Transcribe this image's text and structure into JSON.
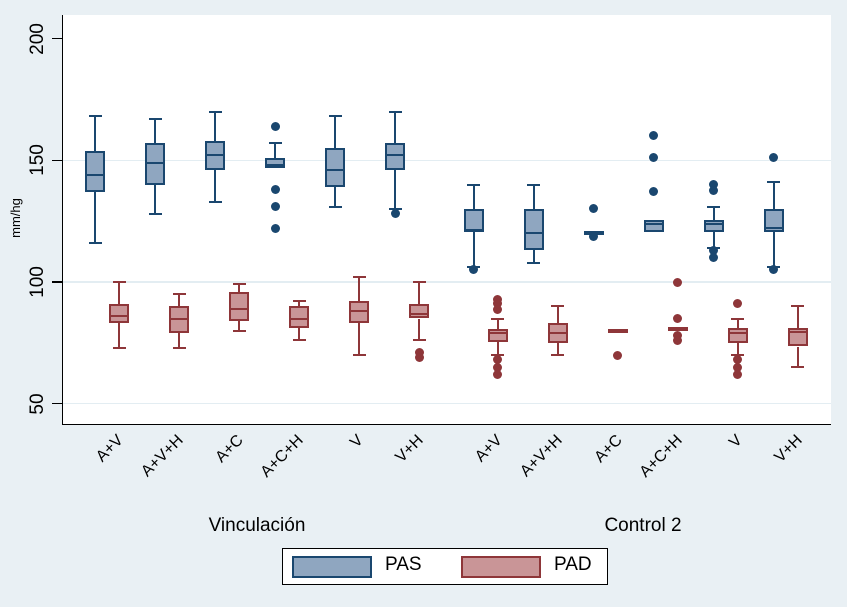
{
  "figure": {
    "background": "#e9f0f4",
    "plot_background": "#ffffff",
    "grid_color": "#e3edf2",
    "axis_color": "#000000"
  },
  "chart_data": {
    "type": "box",
    "title": "",
    "xlabel": "",
    "ylabel": "mm/hg",
    "ylim": [
      41,
      210
    ],
    "yticks": [
      50,
      100,
      150,
      200
    ],
    "gridlines": [
      50,
      100,
      150
    ],
    "legend_position": "bottom",
    "groups": [
      {
        "label": "Vinculación",
        "categories": [
          "A+V",
          "A+V+H",
          "A+C",
          "A+C+H",
          "V",
          "V+H"
        ]
      },
      {
        "label": "Control 2",
        "categories": [
          "A+V",
          "A+V+H",
          "A+C",
          "A+C+H",
          "V",
          "V+H"
        ]
      }
    ],
    "series": [
      {
        "name": "PAS",
        "fill": "#8fa6c0",
        "border": "#1a476f",
        "boxes": [
          {
            "category": "A+V",
            "low": 116,
            "q1": 137,
            "median": 144,
            "q3": 154,
            "high": 168,
            "outliers_low": [],
            "outliers_high": []
          },
          {
            "category": "A+V+H",
            "low": 128,
            "q1": 140,
            "median": 149,
            "q3": 157,
            "high": 167,
            "outliers_low": [],
            "outliers_high": []
          },
          {
            "category": "A+C",
            "low": 133,
            "q1": 146,
            "median": 152,
            "q3": 158,
            "high": 170,
            "outliers_low": [],
            "outliers_high": []
          },
          {
            "category": "A+C+H",
            "low": null,
            "q1": 147,
            "median": 148,
            "q3": 151,
            "high": 157,
            "outliers_low": [
              138,
              131,
              122
            ],
            "outliers_high": [
              164
            ]
          },
          {
            "category": "V",
            "low": 131,
            "q1": 139,
            "median": 146,
            "q3": 155,
            "high": 168,
            "outliers_low": [],
            "outliers_high": []
          },
          {
            "category": "V+H",
            "low": 130,
            "q1": 146,
            "median": 152,
            "q3": 157,
            "high": 170,
            "outliers_low": [
              128
            ],
            "outliers_high": []
          },
          {
            "category": "A+V",
            "low": 106,
            "q1": 120.5,
            "median": 121.5,
            "q3": 130,
            "high": 140,
            "outliers_low": [
              105
            ],
            "outliers_high": []
          },
          {
            "category": "A+V+H",
            "low": 108,
            "q1": 113,
            "median": 120,
            "q3": 130,
            "high": 140,
            "outliers_low": [],
            "outliers_high": []
          },
          {
            "category": "A+C",
            "low": null,
            "q1": 119.5,
            "median": 120.3,
            "q3": 121,
            "high": null,
            "outliers_low": [
              118.5
            ],
            "outliers_high": [
              130
            ]
          },
          {
            "category": "A+C+H",
            "low": null,
            "q1": 120.5,
            "median": 124,
            "q3": 125.5,
            "high": null,
            "outliers_low": [],
            "outliers_high": [
              160,
              151,
              137
            ]
          },
          {
            "category": "V",
            "low": 114,
            "q1": 120.5,
            "median": 124,
            "q3": 125.5,
            "high": 131,
            "outliers_low": [
              113,
              110
            ],
            "outliers_high": [
              140,
              137.5
            ]
          },
          {
            "category": "V+H",
            "low": 106,
            "q1": 120.5,
            "median": 122,
            "q3": 130,
            "high": 141,
            "outliers_low": [
              105
            ],
            "outliers_high": [
              151
            ]
          }
        ]
      },
      {
        "name": "PAD",
        "fill": "#c99597",
        "border": "#8e3639",
        "boxes": [
          {
            "category": "A+V",
            "low": 73,
            "q1": 83,
            "median": 86,
            "q3": 91,
            "high": 100,
            "outliers_low": [],
            "outliers_high": []
          },
          {
            "category": "A+V+H",
            "low": 73,
            "q1": 79,
            "median": 85,
            "q3": 90,
            "high": 95,
            "outliers_low": [],
            "outliers_high": []
          },
          {
            "category": "A+C",
            "low": 80,
            "q1": 84,
            "median": 89,
            "q3": 96,
            "high": 99,
            "outliers_low": [],
            "outliers_high": []
          },
          {
            "category": "A+C+H",
            "low": 76,
            "q1": 81,
            "median": 85,
            "q3": 90,
            "high": 92,
            "outliers_low": [],
            "outliers_high": []
          },
          {
            "category": "V",
            "low": 70,
            "q1": 83,
            "median": 88,
            "q3": 92,
            "high": 102,
            "outliers_low": [],
            "outliers_high": []
          },
          {
            "category": "V+H",
            "low": 76,
            "q1": 85,
            "median": 87,
            "q3": 91,
            "high": 100,
            "outliers_low": [
              71,
              69
            ],
            "outliers_high": []
          },
          {
            "category": "A+V",
            "low": 70,
            "q1": 75.5,
            "median": 79,
            "q3": 80.5,
            "high": 85,
            "outliers_low": [
              68,
              65,
              62
            ],
            "outliers_high": [
              93,
              91,
              88.5
            ]
          },
          {
            "category": "A+V+H",
            "low": 70,
            "q1": 75,
            "median": 79,
            "q3": 83,
            "high": 90,
            "outliers_low": [],
            "outliers_high": []
          },
          {
            "category": "A+C",
            "low": null,
            "q1": 79,
            "median": 79.7,
            "q3": 80.5,
            "high": null,
            "outliers_low": [
              70
            ],
            "outliers_high": []
          },
          {
            "category": "A+C+H",
            "low": null,
            "q1": 80.5,
            "median": 81,
            "q3": 81.5,
            "high": null,
            "outliers_low": [
              78,
              76
            ],
            "outliers_high": [
              100,
              85
            ]
          },
          {
            "category": "V",
            "low": 70,
            "q1": 75,
            "median": 79,
            "q3": 81,
            "high": 85,
            "outliers_low": [
              68,
              65,
              62
            ],
            "outliers_high": [
              91
            ]
          },
          {
            "category": "V+H",
            "low": 65,
            "q1": 73.5,
            "median": 79.5,
            "q3": 81,
            "high": 90,
            "outliers_low": [],
            "outliers_high": []
          }
        ]
      }
    ]
  }
}
